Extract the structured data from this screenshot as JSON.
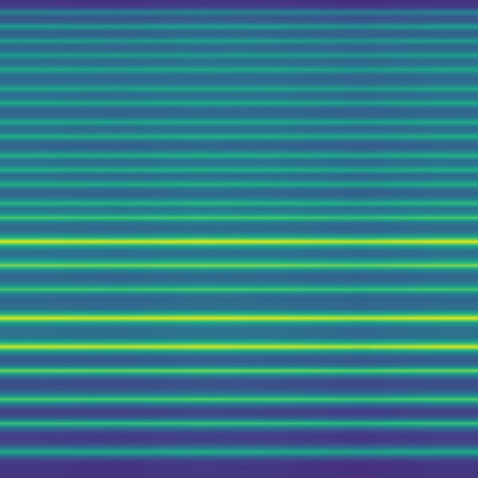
{
  "chart_data": {
    "type": "heatmap",
    "tick_labels": false,
    "color": "Viridis",
    "zlim": [
      0,
      1
    ],
    "cells": [
      [
        0.15,
        0.14,
        0.16,
        0.15,
        0.13,
        0.15
      ],
      [
        0.2,
        0.19,
        0.21,
        0.2,
        0.18,
        0.19
      ],
      [
        0.45,
        0.44,
        0.46,
        0.45,
        0.42,
        0.44
      ],
      [
        0.28,
        0.27,
        0.29,
        0.28,
        0.26,
        0.28
      ],
      [
        0.3,
        0.29,
        0.31,
        0.3,
        0.28,
        0.3
      ],
      [
        0.55,
        0.54,
        0.56,
        0.55,
        0.52,
        0.56
      ],
      [
        0.32,
        0.31,
        0.33,
        0.32,
        0.3,
        0.32
      ],
      [
        0.33,
        0.32,
        0.34,
        0.33,
        0.31,
        0.33
      ],
      [
        0.55,
        0.53,
        0.56,
        0.55,
        0.52,
        0.55
      ],
      [
        0.33,
        0.32,
        0.34,
        0.33,
        0.31,
        0.33
      ],
      [
        0.35,
        0.34,
        0.36,
        0.35,
        0.33,
        0.35
      ],
      [
        0.55,
        0.56,
        0.54,
        0.55,
        0.52,
        0.56
      ],
      [
        0.35,
        0.34,
        0.36,
        0.35,
        0.33,
        0.35
      ],
      [
        0.38,
        0.37,
        0.39,
        0.38,
        0.35,
        0.38
      ],
      [
        0.58,
        0.57,
        0.59,
        0.58,
        0.55,
        0.58
      ],
      [
        0.38,
        0.37,
        0.39,
        0.38,
        0.35,
        0.38
      ],
      [
        0.33,
        0.32,
        0.34,
        0.33,
        0.31,
        0.33
      ],
      [
        0.38,
        0.39,
        0.37,
        0.38,
        0.35,
        0.38
      ],
      [
        0.58,
        0.57,
        0.59,
        0.58,
        0.55,
        0.59
      ],
      [
        0.36,
        0.35,
        0.37,
        0.36,
        0.33,
        0.36
      ],
      [
        0.38,
        0.37,
        0.39,
        0.38,
        0.35,
        0.38
      ],
      [
        0.6,
        0.59,
        0.61,
        0.6,
        0.57,
        0.6
      ],
      [
        0.36,
        0.35,
        0.37,
        0.36,
        0.33,
        0.36
      ],
      [
        0.32,
        0.31,
        0.33,
        0.32,
        0.3,
        0.32
      ],
      [
        0.38,
        0.37,
        0.39,
        0.38,
        0.35,
        0.38
      ],
      [
        0.6,
        0.59,
        0.61,
        0.6,
        0.57,
        0.61
      ],
      [
        0.36,
        0.35,
        0.37,
        0.36,
        0.33,
        0.36
      ],
      [
        0.38,
        0.37,
        0.39,
        0.38,
        0.36,
        0.38
      ],
      [
        0.62,
        0.61,
        0.63,
        0.62,
        0.59,
        0.62
      ],
      [
        0.36,
        0.35,
        0.37,
        0.36,
        0.33,
        0.36
      ],
      [
        0.3,
        0.29,
        0.31,
        0.3,
        0.28,
        0.3
      ],
      [
        0.4,
        0.39,
        0.41,
        0.4,
        0.37,
        0.4
      ],
      [
        0.62,
        0.61,
        0.63,
        0.62,
        0.59,
        0.63
      ],
      [
        0.36,
        0.35,
        0.37,
        0.36,
        0.33,
        0.36
      ],
      [
        0.4,
        0.39,
        0.41,
        0.4,
        0.37,
        0.4
      ],
      [
        0.62,
        0.61,
        0.63,
        0.62,
        0.59,
        0.62
      ],
      [
        0.34,
        0.33,
        0.35,
        0.34,
        0.32,
        0.34
      ],
      [
        0.4,
        0.39,
        0.41,
        0.4,
        0.37,
        0.4
      ],
      [
        0.62,
        0.61,
        0.64,
        0.62,
        0.59,
        0.62
      ],
      [
        0.36,
        0.35,
        0.37,
        0.36,
        0.33,
        0.36
      ],
      [
        0.32,
        0.31,
        0.33,
        0.32,
        0.3,
        0.32
      ],
      [
        0.42,
        0.41,
        0.43,
        0.42,
        0.39,
        0.42
      ],
      [
        0.65,
        0.64,
        0.66,
        0.65,
        0.62,
        0.66
      ],
      [
        0.38,
        0.37,
        0.39,
        0.38,
        0.35,
        0.38
      ],
      [
        0.45,
        0.44,
        0.46,
        0.45,
        0.42,
        0.45
      ],
      [
        0.72,
        0.71,
        0.73,
        0.72,
        0.69,
        0.73
      ],
      [
        0.4,
        0.39,
        0.41,
        0.4,
        0.37,
        0.4
      ],
      [
        0.34,
        0.33,
        0.35,
        0.34,
        0.32,
        0.34
      ],
      [
        0.38,
        0.37,
        0.39,
        0.38,
        0.35,
        0.38
      ],
      [
        0.6,
        0.58,
        0.61,
        0.6,
        0.57,
        0.6
      ],
      [
        0.95,
        0.94,
        0.96,
        0.95,
        0.92,
        0.96
      ],
      [
        0.55,
        0.54,
        0.56,
        0.55,
        0.52,
        0.55
      ],
      [
        0.36,
        0.35,
        0.37,
        0.36,
        0.33,
        0.36
      ],
      [
        0.38,
        0.37,
        0.39,
        0.38,
        0.35,
        0.38
      ],
      [
        0.55,
        0.54,
        0.56,
        0.55,
        0.52,
        0.55
      ],
      [
        0.8,
        0.79,
        0.81,
        0.8,
        0.77,
        0.81
      ],
      [
        0.45,
        0.44,
        0.46,
        0.45,
        0.42,
        0.45
      ],
      [
        0.33,
        0.32,
        0.34,
        0.33,
        0.31,
        0.33
      ],
      [
        0.34,
        0.33,
        0.35,
        0.34,
        0.32,
        0.34
      ],
      [
        0.45,
        0.44,
        0.46,
        0.45,
        0.42,
        0.45
      ],
      [
        0.72,
        0.71,
        0.73,
        0.72,
        0.69,
        0.72
      ],
      [
        0.4,
        0.39,
        0.41,
        0.4,
        0.37,
        0.4
      ],
      [
        0.33,
        0.32,
        0.34,
        0.33,
        0.31,
        0.33
      ],
      [
        0.35,
        0.34,
        0.36,
        0.35,
        0.33,
        0.35
      ],
      [
        0.36,
        0.35,
        0.37,
        0.36,
        0.33,
        0.36
      ],
      [
        0.6,
        0.59,
        0.61,
        0.6,
        0.57,
        0.6
      ],
      [
        0.95,
        0.94,
        0.96,
        0.95,
        0.92,
        0.96
      ],
      [
        0.55,
        0.54,
        0.56,
        0.55,
        0.52,
        0.55
      ],
      [
        0.38,
        0.37,
        0.39,
        0.38,
        0.35,
        0.38
      ],
      [
        0.36,
        0.35,
        0.37,
        0.36,
        0.33,
        0.36
      ],
      [
        0.38,
        0.37,
        0.39,
        0.38,
        0.35,
        0.38
      ],
      [
        0.6,
        0.59,
        0.61,
        0.6,
        0.57,
        0.6
      ],
      [
        0.93,
        0.92,
        0.94,
        0.93,
        0.9,
        0.94
      ],
      [
        0.52,
        0.51,
        0.53,
        0.52,
        0.49,
        0.52
      ],
      [
        0.32,
        0.31,
        0.33,
        0.32,
        0.3,
        0.32
      ],
      [
        0.28,
        0.27,
        0.29,
        0.28,
        0.26,
        0.28
      ],
      [
        0.4,
        0.39,
        0.41,
        0.4,
        0.37,
        0.4
      ],
      [
        0.8,
        0.79,
        0.81,
        0.8,
        0.77,
        0.8
      ],
      [
        0.42,
        0.41,
        0.43,
        0.42,
        0.39,
        0.42
      ],
      [
        0.25,
        0.24,
        0.26,
        0.25,
        0.23,
        0.25
      ],
      [
        0.24,
        0.23,
        0.25,
        0.24,
        0.22,
        0.24
      ],
      [
        0.28,
        0.27,
        0.29,
        0.28,
        0.26,
        0.28
      ],
      [
        0.42,
        0.41,
        0.43,
        0.42,
        0.39,
        0.42
      ],
      [
        0.75,
        0.74,
        0.76,
        0.75,
        0.72,
        0.75
      ],
      [
        0.38,
        0.37,
        0.39,
        0.38,
        0.35,
        0.38
      ],
      [
        0.22,
        0.21,
        0.23,
        0.22,
        0.2,
        0.22
      ],
      [
        0.2,
        0.19,
        0.21,
        0.2,
        0.18,
        0.2
      ],
      [
        0.32,
        0.31,
        0.33,
        0.32,
        0.3,
        0.32
      ],
      [
        0.7,
        0.69,
        0.71,
        0.7,
        0.67,
        0.7
      ],
      [
        0.36,
        0.35,
        0.37,
        0.36,
        0.33,
        0.36
      ],
      [
        0.2,
        0.19,
        0.21,
        0.2,
        0.18,
        0.2
      ],
      [
        0.18,
        0.17,
        0.19,
        0.18,
        0.16,
        0.18
      ],
      [
        0.2,
        0.19,
        0.21,
        0.2,
        0.18,
        0.2
      ],
      [
        0.35,
        0.34,
        0.36,
        0.35,
        0.33,
        0.35
      ],
      [
        0.62,
        0.61,
        0.63,
        0.62,
        0.59,
        0.62
      ],
      [
        0.3,
        0.29,
        0.31,
        0.3,
        0.28,
        0.3
      ],
      [
        0.18,
        0.17,
        0.19,
        0.18,
        0.16,
        0.18
      ],
      [
        0.15,
        0.14,
        0.16,
        0.15,
        0.13,
        0.15
      ],
      [
        0.16,
        0.15,
        0.17,
        0.16,
        0.14,
        0.16
      ],
      [
        0.15,
        0.14,
        0.16,
        0.15,
        0.13,
        0.15
      ]
    ]
  }
}
